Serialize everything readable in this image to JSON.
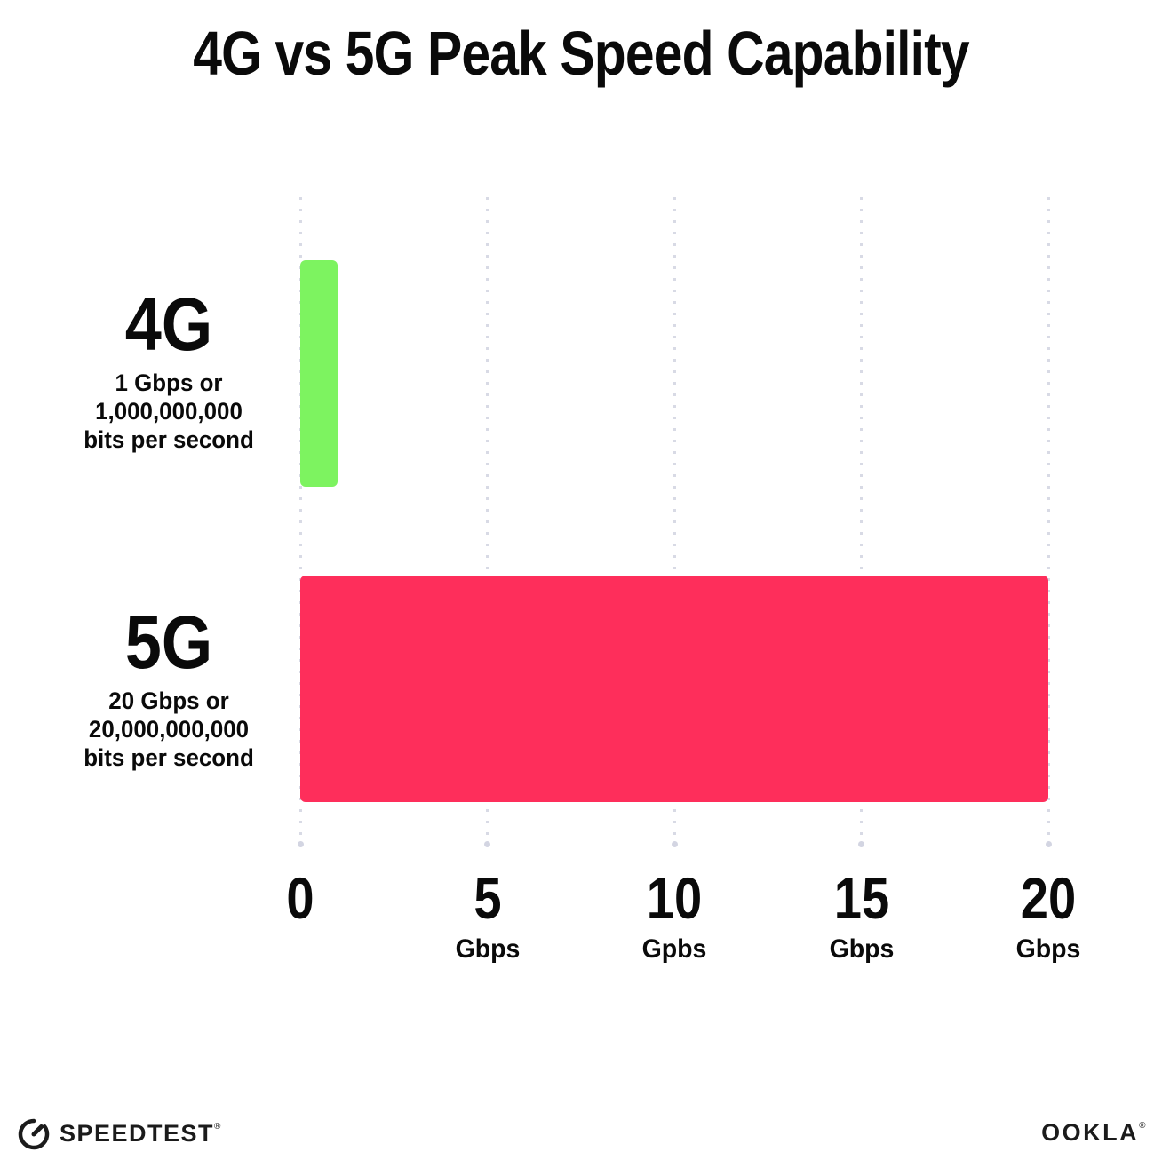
{
  "title": "4G vs 5G Peak Speed Capability",
  "colors": {
    "bar_4g_green": "#7DF360",
    "bar_5g_pink": "#FE2E5B",
    "gridline": "#D8DAE5",
    "text": "#0A0A0A",
    "background": "#FFFFFF"
  },
  "chart_data": {
    "type": "bar",
    "orientation": "horizontal",
    "title": "4G vs 5G Peak Speed Capability",
    "categories": [
      "4G",
      "5G"
    ],
    "series": [
      {
        "name": "Peak speed capability (Gbps)",
        "values": [
          1,
          20
        ]
      }
    ],
    "xlim": [
      0,
      20
    ],
    "grid": "vertical-dotted",
    "legend": "none",
    "bars": [
      {
        "label": "4G",
        "value_gbps": 1,
        "color": "#7DF360",
        "sublabel_lines": [
          "1 Gbps or",
          "1,000,000,000",
          "bits per second"
        ]
      },
      {
        "label": "5G",
        "value_gbps": 20,
        "color": "#FE2E5B",
        "sublabel_lines": [
          "20 Gbps or",
          "20,000,000,000",
          "bits per second"
        ]
      }
    ],
    "x_ticks": [
      {
        "label": "0",
        "unit": ""
      },
      {
        "label": "5",
        "unit": "Gbps"
      },
      {
        "label": "10",
        "unit": "Gpbs"
      },
      {
        "label": "15",
        "unit": "Gbps"
      },
      {
        "label": "20",
        "unit": "Gbps"
      }
    ]
  },
  "footer": {
    "speedtest_label": "SPEEDTEST",
    "speedtest_mark": "®",
    "ookla_label": "OOKLA",
    "ookla_mark": "®"
  }
}
